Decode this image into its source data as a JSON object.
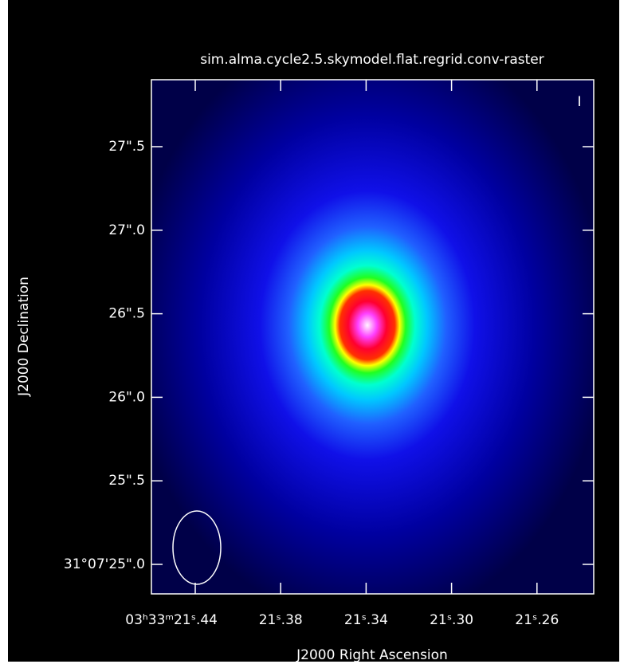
{
  "chart_data": {
    "type": "image",
    "title": "sim.alma.cycle2.5.skymodel.flat.regrid.conv-raster",
    "x_label": "J2000 Right Ascension",
    "y_label": "J2000 Declination",
    "stokes": "I",
    "xtick_labels": [
      "03ʰ33ᵐ21ˢ.44",
      "21ˢ.38",
      "21ˢ.34",
      "21ˢ.30",
      "21ˢ.26"
    ],
    "ytick_labels": [
      "27\".5",
      "27\".0",
      "26\".5",
      "26\".0",
      "25\".5",
      "31°07'25\".0"
    ]
  }
}
